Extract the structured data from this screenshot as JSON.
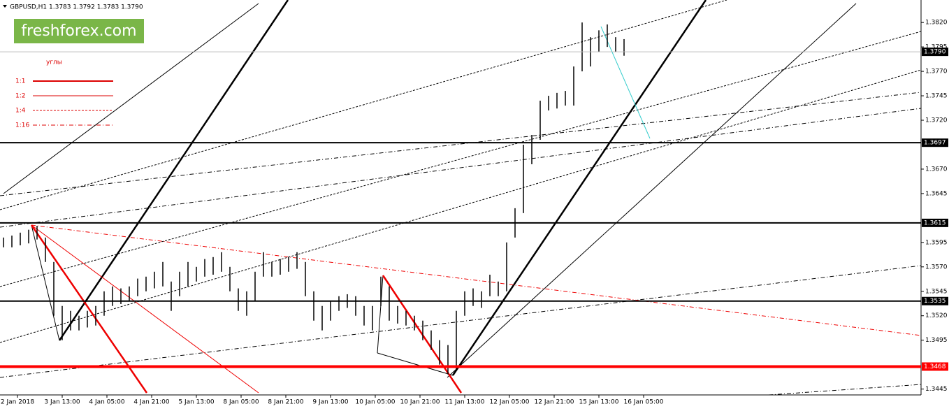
{
  "chart_data": {
    "type": "ohlc",
    "title": "GBPUSD,H1  1.3783 1.3792 1.3783 1.3790",
    "logo": "freshforex.com",
    "color": "#000000",
    "x": [
      0,
      3,
      6,
      9,
      12,
      15,
      18,
      21,
      24,
      27,
      30,
      33,
      36,
      39,
      42,
      45,
      48,
      51,
      54,
      57,
      60,
      63,
      66,
      69,
      72,
      75,
      78,
      81,
      84,
      87,
      90,
      93,
      96,
      99,
      102,
      105,
      108,
      111,
      114,
      117,
      120,
      123,
      126,
      129,
      132,
      135,
      138,
      141,
      144,
      147,
      150,
      153,
      156,
      159,
      162,
      165,
      168,
      171,
      174,
      177,
      180,
      183,
      186,
      189,
      192,
      195,
      198,
      201,
      204,
      207,
      210,
      213,
      216,
      219,
      222
    ],
    "high": [
      1.36,
      1.3602,
      1.3605,
      1.3608,
      1.3612,
      1.36,
      1.3575,
      1.353,
      1.3525,
      1.352,
      1.3525,
      1.353,
      1.3545,
      1.355,
      1.3548,
      1.355,
      1.3558,
      1.356,
      1.3565,
      1.3575,
      1.3555,
      1.3565,
      1.3575,
      1.357,
      1.3578,
      1.358,
      1.3585,
      1.357,
      1.3548,
      1.3545,
      1.3565,
      1.3585,
      1.3575,
      1.3578,
      1.358,
      1.3585,
      1.3575,
      1.3545,
      1.353,
      1.3535,
      1.354,
      1.3542,
      1.354,
      1.353,
      1.353,
      1.356,
      1.355,
      1.353,
      1.3525,
      1.352,
      1.3515,
      1.3505,
      1.3495,
      1.349,
      1.3525,
      1.3545,
      1.3548,
      1.3545,
      1.3562,
      1.3555,
      1.3595,
      1.363,
      1.3695,
      1.3705,
      1.374,
      1.3745,
      1.3748,
      1.375,
      1.3775,
      1.382,
      1.3805,
      1.3812,
      1.3818,
      1.3805,
      1.3803
    ],
    "low": [
      1.359,
      1.359,
      1.3592,
      1.3594,
      1.3598,
      1.3575,
      1.352,
      1.3495,
      1.3505,
      1.3505,
      1.3508,
      1.351,
      1.352,
      1.353,
      1.3532,
      1.3535,
      1.354,
      1.3545,
      1.3548,
      1.355,
      1.3525,
      1.354,
      1.355,
      1.3555,
      1.356,
      1.3562,
      1.3565,
      1.3545,
      1.3525,
      1.352,
      1.3535,
      1.356,
      1.356,
      1.3562,
      1.3565,
      1.3568,
      1.354,
      1.3515,
      1.3505,
      1.3515,
      1.3525,
      1.3528,
      1.352,
      1.351,
      1.3505,
      1.353,
      1.3515,
      1.3512,
      1.351,
      1.3505,
      1.3495,
      1.3485,
      1.347,
      1.346,
      1.3465,
      1.352,
      1.353,
      1.3528,
      1.354,
      1.354,
      1.3545,
      1.36,
      1.3625,
      1.3675,
      1.37,
      1.373,
      1.3732,
      1.3735,
      1.3735,
      1.377,
      1.3775,
      1.379,
      1.3795,
      1.379,
      1.3786
    ],
    "xlim": [
      -1.25,
      328.25
    ],
    "ylim": [
      1.3439,
      1.3843
    ],
    "xticks": [
      {
        "value": 5,
        "label": "2 Jan 2018"
      },
      {
        "value": 21,
        "label": "3 Jan 13:00"
      },
      {
        "value": 37,
        "label": "4 Jan 05:00"
      },
      {
        "value": 53,
        "label": "4 Jan 21:00"
      },
      {
        "value": 69,
        "label": "5 Jan 13:00"
      },
      {
        "value": 85,
        "label": "8 Jan 05:00"
      },
      {
        "value": 101,
        "label": "8 Jan 21:00"
      },
      {
        "value": 117,
        "label": "9 Jan 13:00"
      },
      {
        "value": 133,
        "label": "10 Jan 05:00"
      },
      {
        "value": 149,
        "label": "10 Jan 21:00"
      },
      {
        "value": 165,
        "label": "11 Jan 13:00"
      },
      {
        "value": 181,
        "label": "12 Jan 05:00"
      },
      {
        "value": 197,
        "label": "12 Jan 21:00"
      },
      {
        "value": 213,
        "label": "15 Jan 13:00"
      },
      {
        "value": 229,
        "label": "16 Jan 05:00"
      }
    ],
    "yticks": [
      {
        "value": 1.382,
        "label": "1.3820"
      },
      1.3795,
      {
        "value": 1.377,
        "label": "1.3770"
      },
      1.3745,
      {
        "value": 1.372,
        "label": "1.3720"
      },
      {
        "value": 1.367,
        "label": "1.3670"
      },
      1.3645,
      1.3595,
      {
        "value": 1.357,
        "label": "1.3570"
      },
      1.3545,
      {
        "value": 1.352,
        "label": "1.3520"
      },
      1.3495,
      1.3445
    ],
    "levels": [
      {
        "value": 1.3697,
        "color": "#000000"
      },
      {
        "value": 1.3615,
        "color": "#000000"
      },
      {
        "value": 1.3535,
        "color": "#000000"
      },
      {
        "value": 1.3468,
        "color": "#ff0000"
      }
    ],
    "last_price": {
      "value": 1.379,
      "label": "1.3790"
    },
    "legend": {
      "title": "углы",
      "items": [
        {
          "name": "1:1",
          "color": "#dd0000",
          "width": 2,
          "dash": "none"
        },
        {
          "name": "1:2",
          "color": "#dd0000",
          "width": 1,
          "dash": "none"
        },
        {
          "name": "1:4",
          "color": "#dd0000",
          "width": 1,
          "dash": "3 2"
        },
        {
          "name": "1:16",
          "color": "#dd0000",
          "width": 1,
          "dash": "6 3 1 3"
        }
      ]
    }
  }
}
